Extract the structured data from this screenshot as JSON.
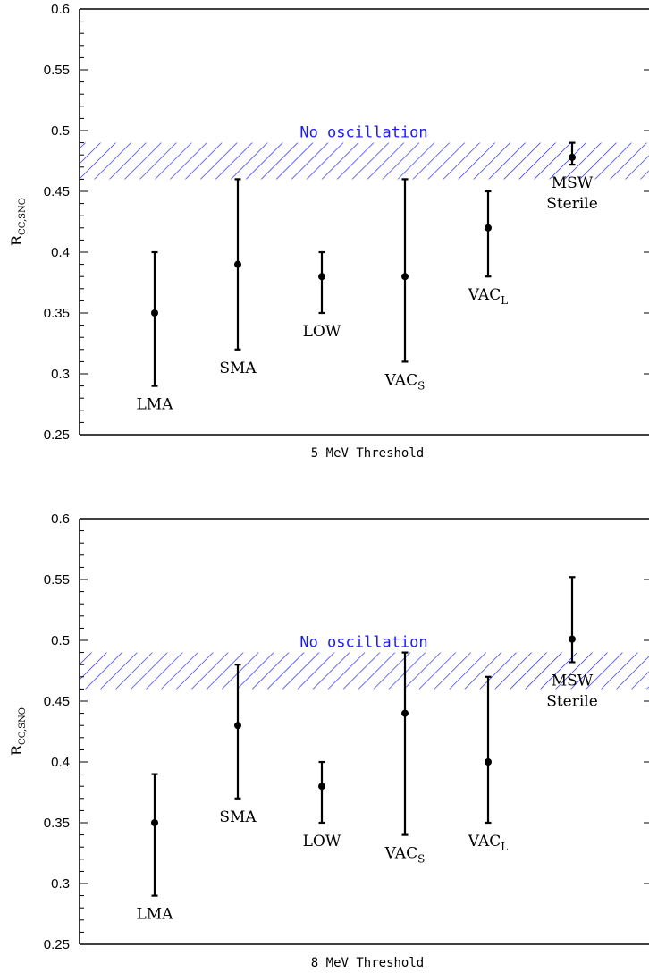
{
  "chart_data": [
    {
      "type": "scatter",
      "xlabel": "5 MeV Threshold",
      "ylabel_main": "R",
      "ylabel_sub": "CC,SNO",
      "ylim": [
        0.25,
        0.6
      ],
      "yticks": [
        "0.25",
        "0.3",
        "0.35",
        "0.4",
        "0.45",
        "0.5",
        "0.55",
        "0.6"
      ],
      "band": {
        "label": "No oscillation",
        "low": 0.46,
        "high": 0.49,
        "color": "#1a1aff"
      },
      "points": [
        {
          "label": "LMA",
          "sub": "",
          "value": 0.35,
          "low": 0.29,
          "high": 0.4
        },
        {
          "label": "SMA",
          "sub": "",
          "value": 0.39,
          "low": 0.32,
          "high": 0.46
        },
        {
          "label": "LOW",
          "sub": "",
          "value": 0.38,
          "low": 0.35,
          "high": 0.4
        },
        {
          "label": "VAC",
          "sub": "S",
          "value": 0.38,
          "low": 0.31,
          "high": 0.46
        },
        {
          "label": "VAC",
          "sub": "L",
          "value": 0.42,
          "low": 0.38,
          "high": 0.45
        },
        {
          "label": "MSW",
          "label2": "Sterile",
          "sub": "",
          "value": 0.478,
          "low": 0.472,
          "high": 0.49
        }
      ]
    },
    {
      "type": "scatter",
      "xlabel": "8 MeV Threshold",
      "ylabel_main": "R",
      "ylabel_sub": "CC,SNO",
      "ylim": [
        0.25,
        0.6
      ],
      "yticks": [
        "0.25",
        "0.3",
        "0.35",
        "0.4",
        "0.45",
        "0.5",
        "0.55",
        "0.6"
      ],
      "band": {
        "label": "No oscillation",
        "low": 0.46,
        "high": 0.49,
        "color": "#1a1aff"
      },
      "points": [
        {
          "label": "LMA",
          "sub": "",
          "value": 0.35,
          "low": 0.29,
          "high": 0.39
        },
        {
          "label": "SMA",
          "sub": "",
          "value": 0.43,
          "low": 0.37,
          "high": 0.48
        },
        {
          "label": "LOW",
          "sub": "",
          "value": 0.38,
          "low": 0.35,
          "high": 0.4
        },
        {
          "label": "VAC",
          "sub": "S",
          "value": 0.44,
          "low": 0.34,
          "high": 0.49
        },
        {
          "label": "VAC",
          "sub": "L",
          "value": 0.4,
          "low": 0.35,
          "high": 0.47
        },
        {
          "label": "MSW",
          "label2": "Sterile",
          "sub": "",
          "value": 0.501,
          "low": 0.482,
          "high": 0.552
        }
      ]
    }
  ]
}
